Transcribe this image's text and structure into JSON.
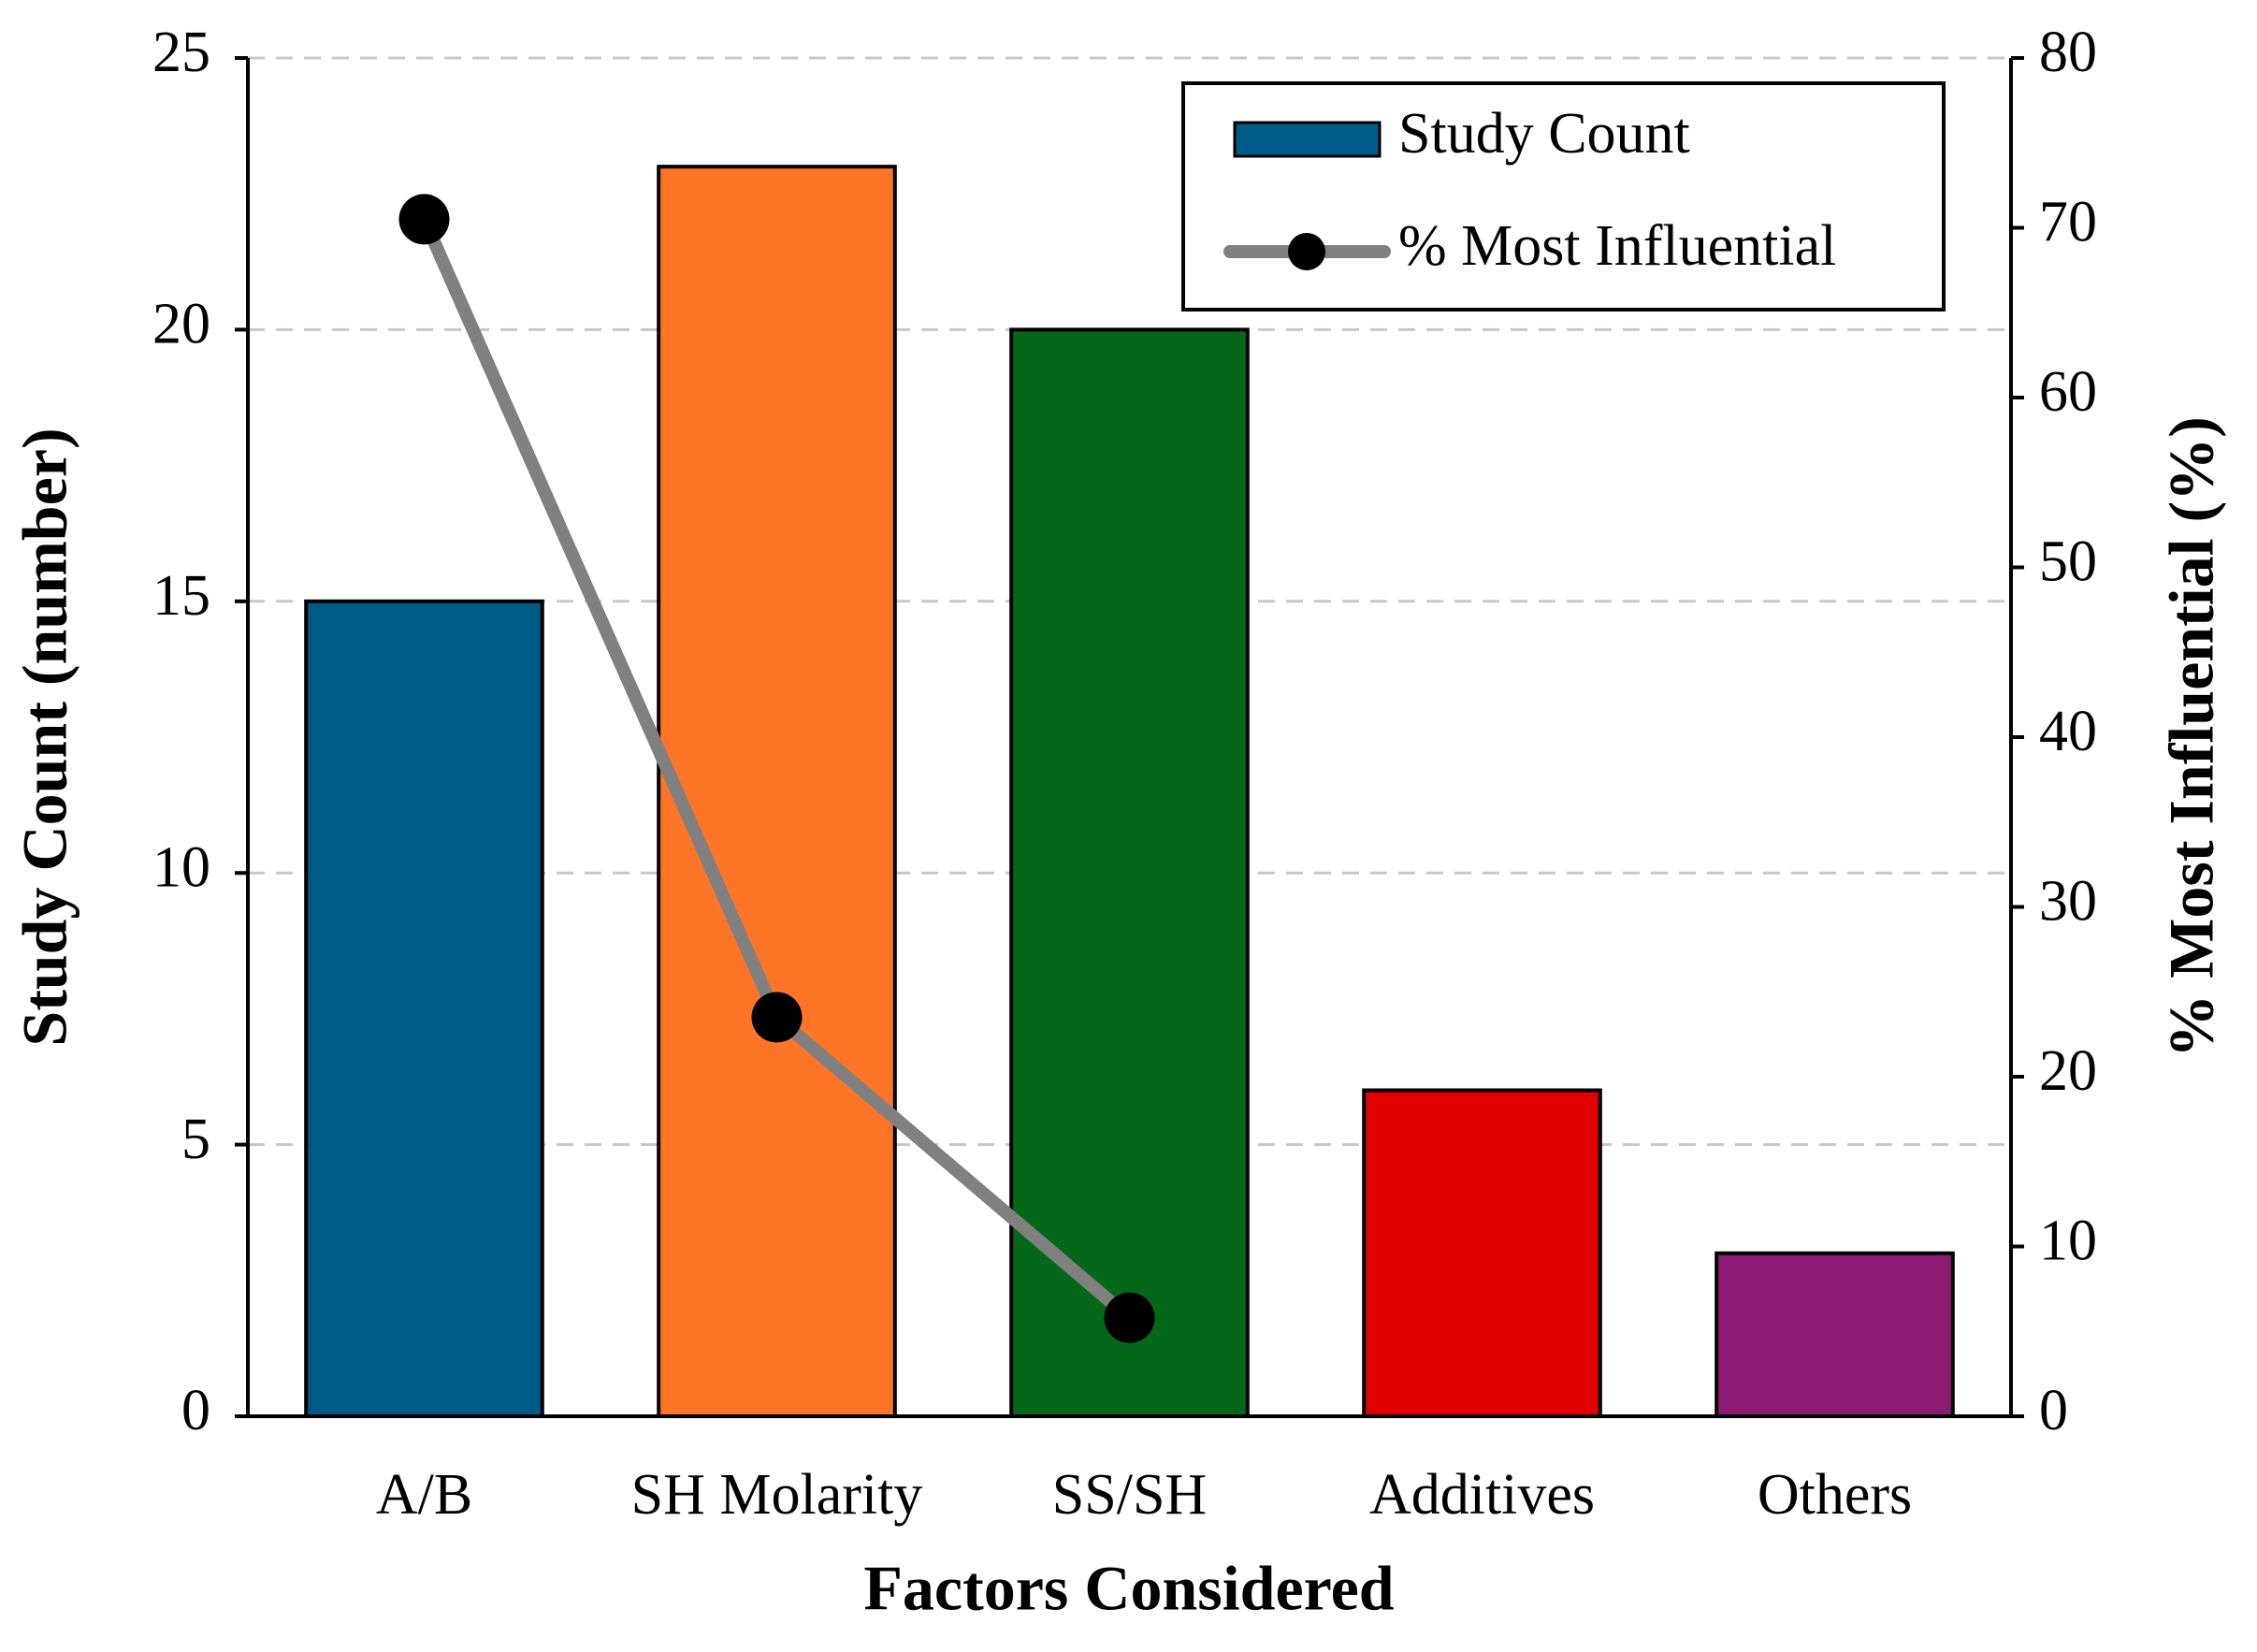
{
  "chart_data": {
    "type": "bar",
    "x_label": "Factors Considered",
    "y_label": "Study Count (number)",
    "y2_label": "% Most Influential (%)",
    "categories": [
      "A/B",
      "SH Molarity",
      "SS/SH",
      "Additives",
      "Others"
    ],
    "series": [
      {
        "name": "Study Count",
        "type": "bar",
        "colors": [
          "#005a87",
          "#ff7527",
          "#046818",
          "#e00000",
          "#8b1a72"
        ],
        "values": [
          15,
          23,
          20,
          6,
          3
        ]
      },
      {
        "name": "% Most Influential",
        "type": "line",
        "axis": "y2",
        "color": "#808080",
        "marker_color": "#000000",
        "values": [
          70.5,
          23.5,
          5.8,
          null,
          null
        ]
      }
    ],
    "ylim": [
      0,
      25
    ],
    "yticks": [
      0,
      5,
      10,
      15,
      20,
      25
    ],
    "y2lim": [
      0,
      80
    ],
    "y2ticks": [
      0,
      10,
      20,
      30,
      40,
      50,
      60,
      70,
      80
    ],
    "grid": true,
    "legend": "upper right"
  }
}
